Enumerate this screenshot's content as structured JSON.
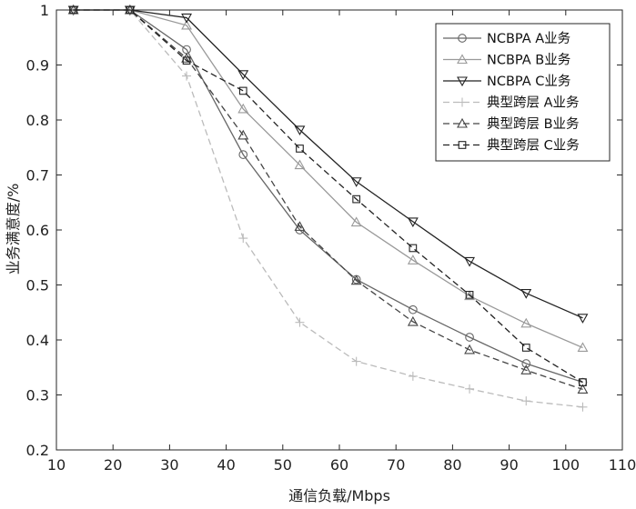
{
  "chart_data": {
    "type": "line",
    "xlabel": "通信负载/Mbps",
    "ylabel": "业务满意度/%",
    "xlim": [
      10,
      110
    ],
    "ylim": [
      0.2,
      1
    ],
    "xticks": [
      10,
      20,
      30,
      40,
      50,
      60,
      70,
      80,
      90,
      100,
      110
    ],
    "yticks": [
      0.2,
      0.3,
      0.4,
      0.5,
      0.6,
      0.7,
      0.8,
      0.9,
      1
    ],
    "grid": false,
    "legend_position": "top-right",
    "x": [
      13,
      23,
      33,
      43,
      53,
      63,
      73,
      83,
      93,
      103
    ],
    "series": [
      {
        "name": "NCBPA A业务",
        "values": [
          1,
          1,
          0.928,
          0.737,
          0.6,
          0.51,
          0.455,
          0.405,
          0.357,
          0.323
        ],
        "color": "#666666",
        "dash": "solid",
        "marker": "circle"
      },
      {
        "name": "NCBPA B业务",
        "values": [
          1,
          1,
          0.972,
          0.82,
          0.718,
          0.614,
          0.545,
          0.48,
          0.43,
          0.386
        ],
        "color": "#999999",
        "dash": "solid",
        "marker": "triangle-up"
      },
      {
        "name": "NCBPA C业务",
        "values": [
          1,
          1,
          0.986,
          0.883,
          0.782,
          0.688,
          0.615,
          0.543,
          0.485,
          0.44
        ],
        "color": "#222222",
        "dash": "solid",
        "marker": "triangle-down"
      },
      {
        "name": "典型跨层 A业务",
        "values": [
          1,
          1,
          0.88,
          0.585,
          0.432,
          0.361,
          0.334,
          0.311,
          0.289,
          0.278
        ],
        "color": "#bbbbbb",
        "dash": "dashed",
        "marker": "plus"
      },
      {
        "name": "典型跨层 B业务",
        "values": [
          1,
          1,
          0.912,
          0.772,
          0.606,
          0.508,
          0.433,
          0.382,
          0.345,
          0.31
        ],
        "color": "#444444",
        "dash": "dashed",
        "marker": "triangle-up"
      },
      {
        "name": "典型跨层 C业务",
        "values": [
          1,
          1,
          0.908,
          0.853,
          0.748,
          0.656,
          0.567,
          0.482,
          0.386,
          0.323
        ],
        "color": "#222222",
        "dash": "dashed",
        "marker": "square"
      }
    ]
  }
}
